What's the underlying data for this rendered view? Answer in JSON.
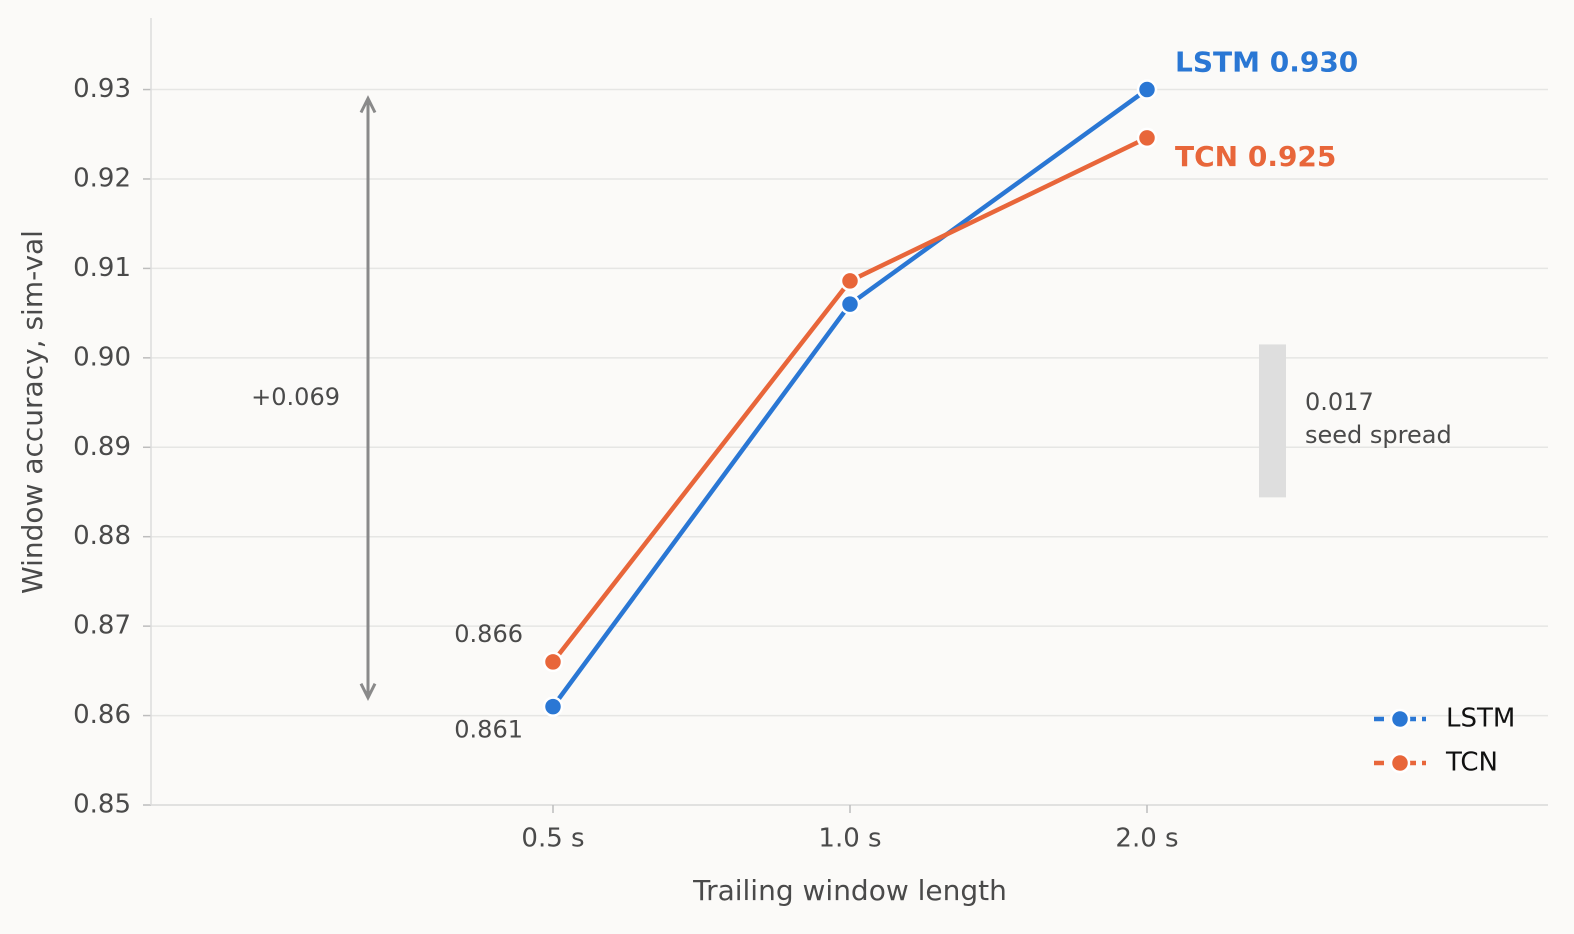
{
  "chart_data": {
    "type": "line",
    "x_label": "Trailing window length",
    "y_label": "Window accuracy, sim-val",
    "categories": [
      "0.5 s",
      "1.0 s",
      "2.0 s"
    ],
    "series": [
      {
        "name": "LSTM",
        "color": "#2a77d4",
        "values": [
          0.861,
          0.906,
          0.93
        ],
        "value_labels": [
          "0.861",
          null,
          "LSTM  0.930"
        ]
      },
      {
        "name": "TCN",
        "color": "#e8663a",
        "values": [
          0.866,
          0.9086,
          0.9246
        ],
        "value_labels": [
          "0.866",
          null,
          "TCN  0.925"
        ]
      }
    ],
    "ylim": [
      0.85,
      0.938
    ],
    "yticks": [
      0.85,
      0.86,
      0.87,
      0.88,
      0.89,
      {
        "value": 0.9,
        "label": "0.90"
      },
      0.91,
      0.92,
      0.93
    ],
    "grid": true,
    "legend": "lower right",
    "gain_arrow": {
      "label": "+0.069",
      "from": 0.862,
      "to": 0.929
    },
    "seed_spread": {
      "value_label": "0.017",
      "label": "seed spread",
      "from": 0.8844,
      "to": 0.9015
    }
  }
}
